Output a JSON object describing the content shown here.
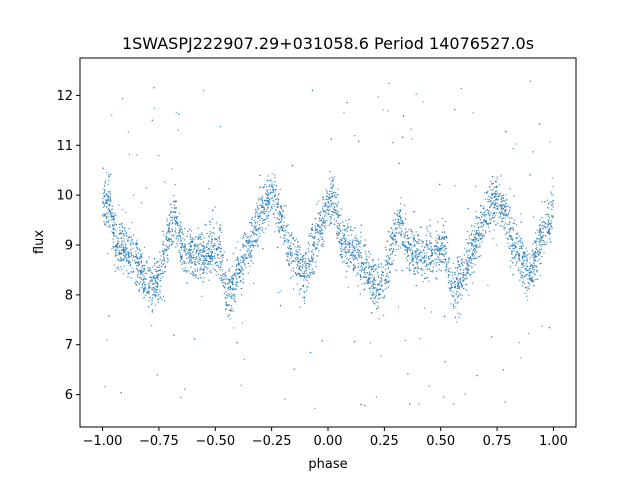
{
  "chart_data": {
    "type": "scatter",
    "title": "1SWASPJ222907.29+031058.6 Period 14076527.0s",
    "xlabel": "phase",
    "ylabel": "flux",
    "xlim": [
      -1.1,
      1.1
    ],
    "ylim": [
      5.35,
      12.75
    ],
    "xticks": [
      -1.0,
      -0.75,
      -0.5,
      -0.25,
      0.0,
      0.25,
      0.5,
      0.75,
      1.0
    ],
    "xtick_labels": [
      "−1.00",
      "−0.75",
      "−0.50",
      "−0.25",
      "0.00",
      "0.25",
      "0.50",
      "0.75",
      "1.00"
    ],
    "yticks": [
      6,
      7,
      8,
      9,
      10,
      11,
      12
    ],
    "ytick_labels": [
      "6",
      "7",
      "8",
      "9",
      "10",
      "11",
      "12"
    ],
    "grid": false,
    "marker_color": "#1f77b4",
    "series": [
      {
        "profile_phase": [
          0.0,
          0.03,
          0.06,
          0.1,
          0.14,
          0.18,
          0.22,
          0.26,
          0.3,
          0.32,
          0.35,
          0.4,
          0.45,
          0.5,
          0.52,
          0.55,
          0.6,
          0.65,
          0.7,
          0.75,
          0.8,
          0.82,
          0.86,
          0.9,
          0.95,
          1.0
        ],
        "profile_flux": [
          9.7,
          9.9,
          9.0,
          8.9,
          8.8,
          8.4,
          8.1,
          8.5,
          9.3,
          9.6,
          9.0,
          8.8,
          8.8,
          8.9,
          8.9,
          8.0,
          8.4,
          9.0,
          9.6,
          10.0,
          9.4,
          9.0,
          8.7,
          8.4,
          9.2,
          9.7
        ],
        "scatter_width": 0.55,
        "outlier_range": [
          5.7,
          12.3
        ]
      }
    ]
  }
}
